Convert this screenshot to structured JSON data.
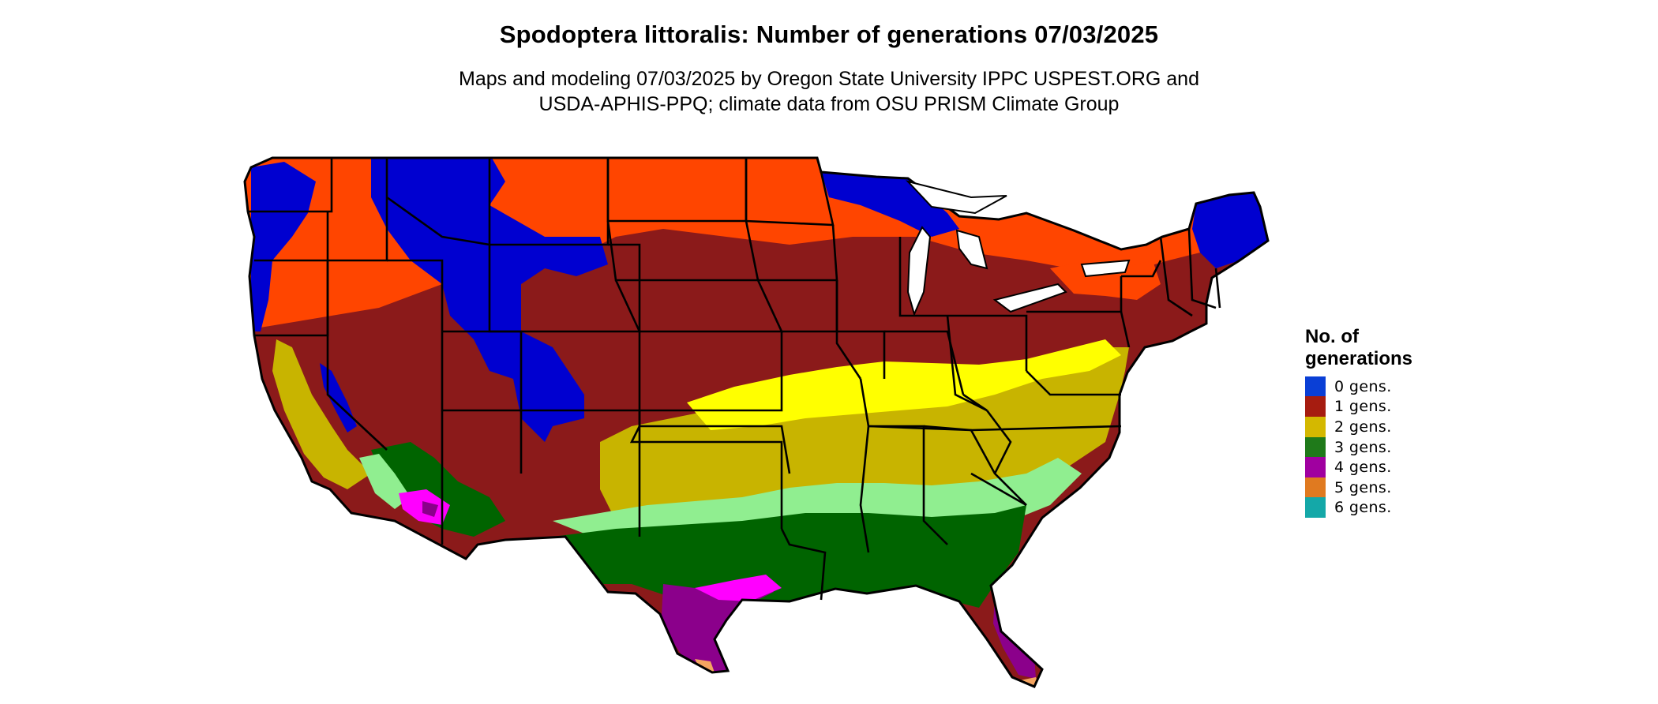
{
  "title": "Spodoptera littoralis: Number of generations 07/03/2025",
  "subtitle": {
    "line1": "Maps and modeling 07/03/2025 by Oregon State University IPPC USPEST.ORG and",
    "line2": "USDA-APHIS-PPQ; climate data from OSU PRISM Climate Group"
  },
  "legend": {
    "title_line1": "No. of",
    "title_line2": "generations",
    "items": [
      {
        "label": "0 gens.",
        "color": "#0a3fd6"
      },
      {
        "label": "1 gens.",
        "color": "#a61c10"
      },
      {
        "label": "2 gens.",
        "color": "#d4b800"
      },
      {
        "label": "3 gens.",
        "color": "#1f7a1a"
      },
      {
        "label": "4 gens.",
        "color": "#a000a0"
      },
      {
        "label": "5 gens.",
        "color": "#e07a20"
      },
      {
        "label": "6 gens.",
        "color": "#14a8a8"
      }
    ]
  },
  "map_colors": {
    "gen0": "#0000d0",
    "gen1_light": "#ff4500",
    "gen1_dark": "#8b1a1a",
    "gen2_light": "#ffff00",
    "gen2_dark": "#c8b400",
    "gen3_light": "#90ee90",
    "gen3_dark": "#006400",
    "gen4_light": "#ff00ff",
    "gen4_dark": "#8b008b",
    "gen5": "#f4a460",
    "borders": "#000000"
  }
}
